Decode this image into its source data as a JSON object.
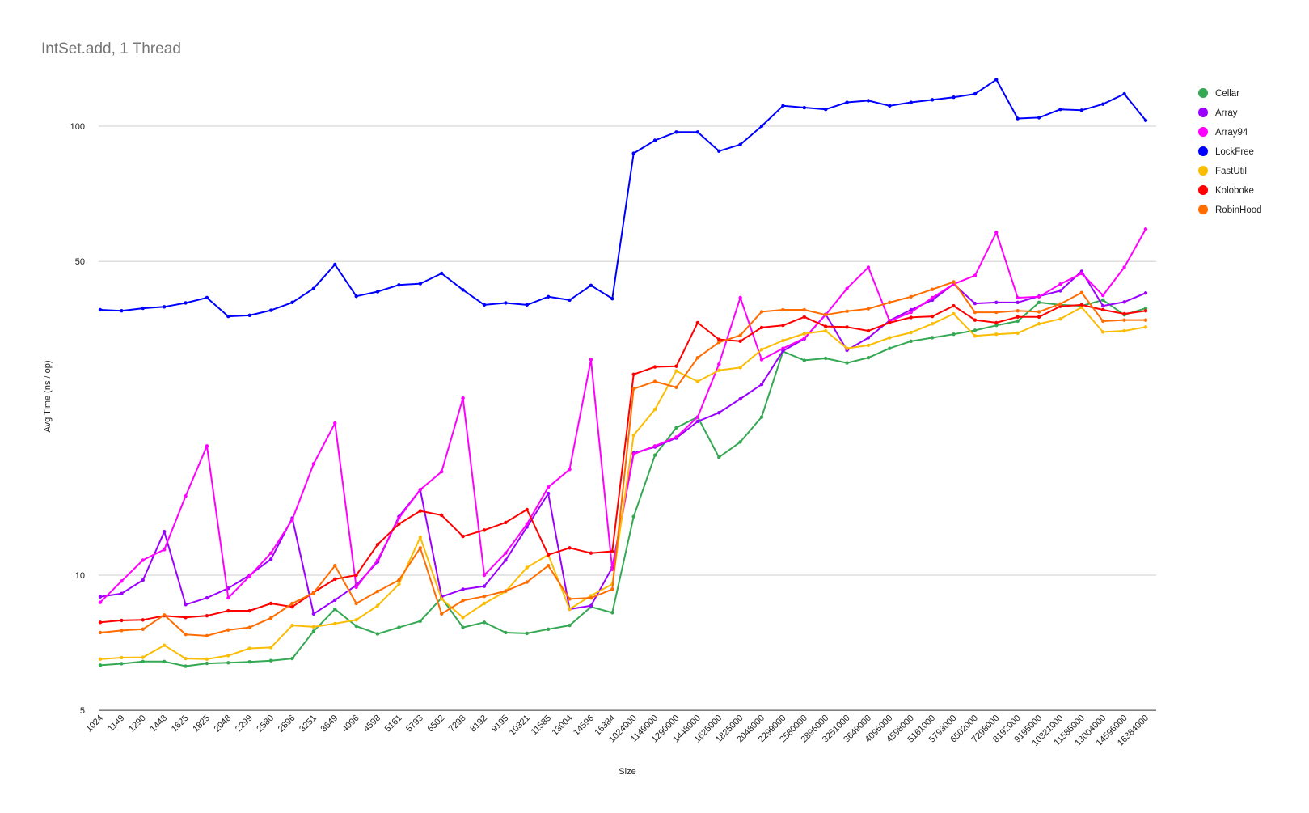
{
  "chart_data": {
    "type": "line",
    "title": "IntSet.add, 1 Thread",
    "xlabel": "Size",
    "ylabel": "Avg Time (ns / op)",
    "y_scale": "log",
    "ylim": [
      5,
      150
    ],
    "y_ticks": [
      5,
      10,
      50,
      100
    ],
    "grid": true,
    "legend_position": "right",
    "categories": [
      "1024",
      "1149",
      "1290",
      "1448",
      "1625",
      "1825",
      "2048",
      "2299",
      "2580",
      "2896",
      "3251",
      "3649",
      "4096",
      "4598",
      "5161",
      "5793",
      "6502",
      "7298",
      "8192",
      "9195",
      "10321",
      "11585",
      "13004",
      "14596",
      "16384",
      "1024000",
      "1149000",
      "1290000",
      "1448000",
      "1625000",
      "1825000",
      "2048000",
      "2299000",
      "2580000",
      "2896000",
      "3251000",
      "3649000",
      "4096000",
      "4598000",
      "5161000",
      "5793000",
      "6502000",
      "7298000",
      "8192000",
      "9195000",
      "10321000",
      "11585000",
      "13004000",
      "14596000",
      "16384000"
    ],
    "series": [
      {
        "name": "Cellar",
        "color": "#34a853",
        "values": [
          6.3,
          6.35,
          6.42,
          6.42,
          6.27,
          6.36,
          6.38,
          6.41,
          6.45,
          6.52,
          7.5,
          8.4,
          7.7,
          7.4,
          7.65,
          7.9,
          8.9,
          7.65,
          7.85,
          7.45,
          7.42,
          7.58,
          7.73,
          8.5,
          8.25,
          13.5,
          18.5,
          21.3,
          22.5,
          18.3,
          19.8,
          22.5,
          31.5,
          30.1,
          30.4,
          29.7,
          30.5,
          32.0,
          33.2,
          33.8,
          34.4,
          35.1,
          36.0,
          36.8,
          40.5,
          40.0,
          39.8,
          41.0,
          38.0,
          39.3
        ]
      },
      {
        "name": "Array",
        "color": "#9b00ff",
        "values": [
          8.95,
          9.1,
          9.75,
          12.5,
          8.6,
          8.9,
          9.35,
          10.0,
          10.85,
          13.4,
          8.2,
          8.8,
          9.5,
          10.7,
          13.5,
          15.5,
          8.95,
          9.3,
          9.45,
          10.8,
          12.8,
          15.2,
          8.4,
          8.55,
          10.4,
          18.7,
          19.3,
          20.2,
          22.0,
          23.0,
          24.7,
          26.6,
          31.6,
          33.6,
          38.1,
          31.7,
          33.8,
          36.9,
          39.0,
          41.0,
          44.5,
          40.3,
          40.5,
          40.5,
          41.8,
          43.0,
          47.5,
          39.8,
          40.6,
          42.5
        ]
      },
      {
        "name": "Array94",
        "color": "#ff00ff",
        "values": [
          8.7,
          9.7,
          10.8,
          11.4,
          15.0,
          19.4,
          8.9,
          9.95,
          11.2,
          13.3,
          17.7,
          21.8,
          9.4,
          10.8,
          13.4,
          15.5,
          17.0,
          24.8,
          10.0,
          11.2,
          13.0,
          15.7,
          17.2,
          30.2,
          10.3,
          18.6,
          19.4,
          20.3,
          22.5,
          29.5,
          41.5,
          30.2,
          32.0,
          33.7,
          38.0,
          43.5,
          48.5,
          36.8,
          38.5,
          41.5,
          44.5,
          46.5,
          58.0,
          41.5,
          41.7,
          44.5,
          47.0,
          42.0,
          48.5,
          59.0
        ]
      },
      {
        "name": "LockFree",
        "color": "#0000ff",
        "values": [
          39.0,
          38.8,
          39.3,
          39.6,
          40.4,
          41.5,
          37.7,
          37.9,
          38.9,
          40.5,
          43.5,
          49.2,
          41.8,
          42.8,
          44.3,
          44.6,
          47.0,
          43.2,
          40.0,
          40.4,
          40.0,
          41.7,
          41.0,
          44.2,
          41.3,
          87.0,
          93.0,
          97.0,
          97.0,
          88.0,
          91.0,
          100.0,
          111.0,
          110.0,
          109.0,
          113.0,
          114.0,
          111.0,
          113.0,
          114.5,
          116.0,
          118.0,
          127.0,
          104.0,
          104.5,
          109.0,
          108.5,
          112.0,
          118.0,
          103.0
        ]
      },
      {
        "name": "FastUtil",
        "color": "#fbbc04",
        "values": [
          6.5,
          6.55,
          6.56,
          6.98,
          6.52,
          6.5,
          6.62,
          6.87,
          6.9,
          7.73,
          7.67,
          7.8,
          7.95,
          8.55,
          9.55,
          12.15,
          8.85,
          8.05,
          8.65,
          9.2,
          10.4,
          11.1,
          8.4,
          9.0,
          9.55,
          20.5,
          23.4,
          28.5,
          27.0,
          28.6,
          29.0,
          31.8,
          33.3,
          34.5,
          35.0,
          32.0,
          32.5,
          33.8,
          34.7,
          36.3,
          38.2,
          34.1,
          34.4,
          34.6,
          36.3,
          37.2,
          39.5,
          34.8,
          35.0,
          35.7
        ]
      },
      {
        "name": "Koloboke",
        "color": "#ff0000",
        "values": [
          7.85,
          7.93,
          7.95,
          8.12,
          8.05,
          8.12,
          8.33,
          8.33,
          8.65,
          8.5,
          9.15,
          9.8,
          10.0,
          11.7,
          13.0,
          13.9,
          13.6,
          12.2,
          12.6,
          13.1,
          14.0,
          11.1,
          11.5,
          11.2,
          11.3,
          28.0,
          29.1,
          29.2,
          36.5,
          33.5,
          33.2,
          35.6,
          36.0,
          37.6,
          35.8,
          35.7,
          35.0,
          36.5,
          37.5,
          37.7,
          39.8,
          37.0,
          36.5,
          37.6,
          37.6,
          39.7,
          40.0,
          39.0,
          38.2,
          38.8
        ]
      },
      {
        "name": "RobinHood",
        "color": "#ff6d01",
        "values": [
          7.45,
          7.53,
          7.58,
          8.15,
          7.38,
          7.33,
          7.55,
          7.65,
          8.03,
          8.65,
          9.13,
          10.5,
          8.65,
          9.2,
          9.75,
          11.5,
          8.2,
          8.78,
          8.97,
          9.22,
          9.65,
          10.5,
          8.85,
          8.9,
          9.3,
          26.0,
          27.0,
          26.2,
          30.5,
          33.0,
          34.2,
          38.6,
          39.0,
          39.0,
          38.0,
          38.7,
          39.2,
          40.5,
          41.7,
          43.3,
          45.0,
          38.5,
          38.5,
          38.8,
          38.6,
          40.2,
          42.6,
          36.8,
          37.0,
          37.0
        ]
      }
    ]
  }
}
